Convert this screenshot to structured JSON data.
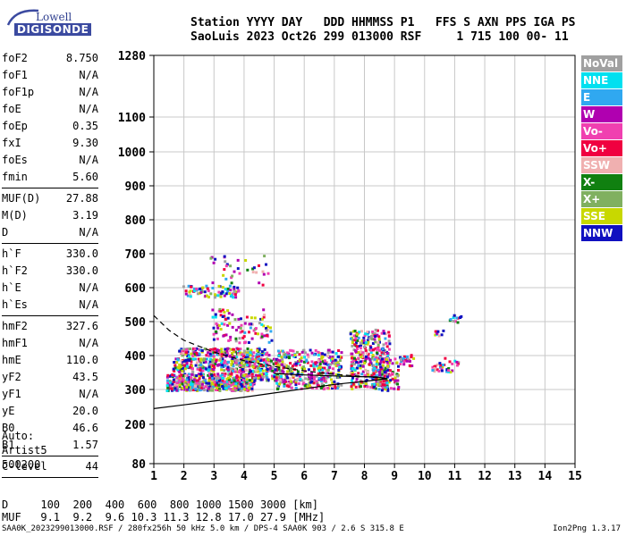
{
  "logo": {
    "line1": "Lowell",
    "line2": "DIGISONDE"
  },
  "header": {
    "row1": "Station YYYY DAY   DDD HHMMSS P1   FFS S AXN PPS IGA PS",
    "row2": "SaoLuis 2023 Oct26 299 013000 RSF     1 715 100 00- 11"
  },
  "params": [
    {
      "k": "foF2",
      "v": "8.750"
    },
    {
      "k": "foF1",
      "v": "N/A"
    },
    {
      "k": "foF1p",
      "v": "N/A"
    },
    {
      "k": "foE",
      "v": "N/A"
    },
    {
      "k": "foEp",
      "v": "0.35"
    },
    {
      "k": "fxI",
      "v": "9.30"
    },
    {
      "k": "foEs",
      "v": "N/A"
    },
    {
      "k": "fmin",
      "v": "5.60"
    },
    {
      "k": "MUF(D)",
      "v": "27.88"
    },
    {
      "k": "M(D)",
      "v": "3.19"
    },
    {
      "k": "D",
      "v": "N/A"
    },
    {
      "k": "h`F",
      "v": "330.0"
    },
    {
      "k": "h`F2",
      "v": "330.0"
    },
    {
      "k": "h`E",
      "v": "N/A"
    },
    {
      "k": "h`Es",
      "v": "N/A"
    },
    {
      "k": "hmF2",
      "v": "327.6"
    },
    {
      "k": "hmF1",
      "v": "N/A"
    },
    {
      "k": "hmE",
      "v": "110.0"
    },
    {
      "k": "yF2",
      "v": "43.5"
    },
    {
      "k": "yF1",
      "v": "N/A"
    },
    {
      "k": "yE",
      "v": "20.0"
    },
    {
      "k": "B0",
      "v": "46.6"
    },
    {
      "k": "B1",
      "v": "1.57"
    },
    {
      "k": "C-level",
      "v": "44"
    }
  ],
  "auto": {
    "line1": "Auto:",
    "line2": "Artist5",
    "line3": "500200"
  },
  "legend": [
    {
      "label": "NoVal",
      "color": "#a0a0a0"
    },
    {
      "label": "NNE",
      "color": "#00e0f0"
    },
    {
      "label": "E",
      "color": "#30a8f0"
    },
    {
      "label": "W",
      "color": "#b000b0"
    },
    {
      "label": "Vo-",
      "color": "#f040b0"
    },
    {
      "label": "Vo+",
      "color": "#f00040"
    },
    {
      "label": "SSW",
      "color": "#f0b0b0"
    },
    {
      "label": "X-",
      "color": "#108010"
    },
    {
      "label": "X+",
      "color": "#80b060"
    },
    {
      "label": "SSE",
      "color": "#c8d800"
    },
    {
      "label": "NNW",
      "color": "#1010c0"
    }
  ],
  "dtable": {
    "row1": "D     100  200  400  600  800 1000 1500 3000 [km]",
    "row2": "MUF   9.1  9.2  9.6 10.3 11.3 12.8 17.0 27.9 [MHz]"
  },
  "footer": {
    "text": "SAA0K_2023299013000.RSF / 280fx256h 50 kHz 5.0 km / DPS-4 SAA0K 903 / 2.6 S 315.8 E",
    "version": "Ion2Png 1.3.17"
  },
  "chart_data": {
    "type": "scatter",
    "x": {
      "range": [
        1,
        15
      ],
      "ticks": [
        "1",
        "2",
        "3",
        "4",
        "5",
        "6",
        "7",
        "8",
        "9",
        "10",
        "11",
        "12",
        "13",
        "14",
        "15"
      ]
    },
    "y": {
      "scale": "nonlinear (virtual height)",
      "ticks": [
        {
          "v": 80,
          "label": "80"
        },
        {
          "v": 200,
          "label": "200"
        },
        {
          "v": 300,
          "label": "300"
        },
        {
          "v": 400,
          "label": "400"
        },
        {
          "v": 500,
          "label": "500"
        },
        {
          "v": 600,
          "label": "600"
        },
        {
          "v": 700,
          "label": "700"
        },
        {
          "v": 800,
          "label": "800"
        },
        {
          "v": 900,
          "label": "900"
        },
        {
          "v": 1000,
          "label": "1000"
        },
        {
          "v": 1100,
          "label": "1100"
        },
        {
          "v": 1280,
          "label": "1280"
        }
      ]
    },
    "grid": true,
    "echo_clusters": [
      {
        "f": [
          1.4,
          4.3
        ],
        "h": [
          300,
          330
        ],
        "n": 360
      },
      {
        "f": [
          1.4,
          5.2
        ],
        "h": [
          330,
          350
        ],
        "n": 220
      },
      {
        "f": [
          1.6,
          5.2
        ],
        "h": [
          355,
          395
        ],
        "n": 360
      },
      {
        "f": [
          1.8,
          4.8
        ],
        "h": [
          400,
          425
        ],
        "n": 180
      },
      {
        "f": [
          5.0,
          7.2
        ],
        "h": [
          305,
          420
        ],
        "n": 360
      },
      {
        "f": [
          7.5,
          8.8
        ],
        "h": [
          305,
          480
        ],
        "n": 320
      },
      {
        "f": [
          8.2,
          9.1
        ],
        "h": [
          300,
          400
        ],
        "n": 120
      },
      {
        "f": [
          2.9,
          4.9
        ],
        "h": [
          440,
          500
        ],
        "n": 70
      },
      {
        "f": [
          2.9,
          4.7
        ],
        "h": [
          510,
          540
        ],
        "n": 30
      },
      {
        "f": [
          1.9,
          3.8
        ],
        "h": [
          575,
          610
        ],
        "n": 80
      },
      {
        "f": [
          2.8,
          4.8
        ],
        "h": [
          610,
          700
        ],
        "n": 35
      },
      {
        "f": [
          9.1,
          9.6
        ],
        "h": [
          370,
          405
        ],
        "n": 25
      },
      {
        "f": [
          10.2,
          11.1
        ],
        "h": [
          355,
          400
        ],
        "n": 35
      },
      {
        "f": [
          10.3,
          10.6
        ],
        "h": [
          460,
          480
        ],
        "n": 10
      },
      {
        "f": [
          10.8,
          11.2
        ],
        "h": [
          500,
          525
        ],
        "n": 12
      }
    ],
    "curves": [
      {
        "name": "virtual-height-profile",
        "style": "solid",
        "points": [
          [
            1,
            245
          ],
          [
            2,
            256
          ],
          [
            3,
            267
          ],
          [
            4,
            278
          ],
          [
            5,
            290
          ],
          [
            6,
            302
          ],
          [
            7,
            315
          ],
          [
            8,
            324
          ],
          [
            8.4,
            328
          ],
          [
            8.75,
            332
          ],
          [
            8.4,
            337
          ],
          [
            7.8,
            338
          ],
          [
            7,
            340
          ],
          [
            6,
            343
          ],
          [
            5,
            347
          ]
        ]
      },
      {
        "name": "extrapolated-topside",
        "style": "dashed",
        "points": [
          [
            1,
            518
          ],
          [
            1.5,
            475
          ],
          [
            2,
            445
          ],
          [
            3,
            410
          ],
          [
            4,
            385
          ],
          [
            5,
            368
          ],
          [
            6,
            355
          ],
          [
            7,
            345
          ],
          [
            8,
            338
          ],
          [
            8.75,
            332
          ]
        ]
      }
    ]
  }
}
